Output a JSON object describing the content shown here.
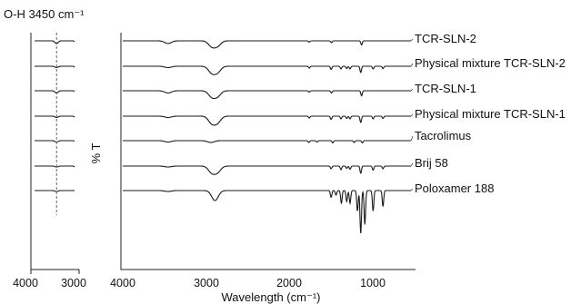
{
  "chart_data": {
    "type": "line",
    "xlabel": "Wavelength (cm⁻¹)",
    "ylabel": "% T",
    "xlim": [
      4000,
      500
    ],
    "xticks": [
      "4000",
      "3000",
      "2000",
      "1000"
    ],
    "inset": {
      "title": "O-H 3450 cm⁻¹",
      "xlim": [
        4000,
        3000
      ],
      "xticks": [
        "4000",
        "3000"
      ],
      "reference_line_x": 3450
    },
    "series": [
      {
        "name": "TCR-SLN-2",
        "dips": [
          [
            3450,
            6
          ],
          [
            2920,
            12
          ],
          [
            2850,
            11
          ],
          [
            1735,
            3
          ],
          [
            1465,
            4
          ],
          [
            1100,
            9
          ]
        ]
      },
      {
        "name": "Physical mixture TCR-SLN-2",
        "dips": [
          [
            3450,
            3
          ],
          [
            2920,
            14
          ],
          [
            2850,
            13
          ],
          [
            1735,
            4
          ],
          [
            1470,
            7
          ],
          [
            1350,
            6
          ],
          [
            1280,
            5
          ],
          [
            1240,
            6
          ],
          [
            1110,
            14
          ],
          [
            960,
            6
          ],
          [
            840,
            5
          ]
        ]
      },
      {
        "name": "TCR-SLN-1",
        "dips": [
          [
            3450,
            5
          ],
          [
            2920,
            13
          ],
          [
            2850,
            12
          ],
          [
            1735,
            3
          ],
          [
            1465,
            5
          ],
          [
            1100,
            11
          ]
        ]
      },
      {
        "name": "Physical mixture TCR-SLN-1",
        "dips": [
          [
            3450,
            3
          ],
          [
            2920,
            15
          ],
          [
            2850,
            14
          ],
          [
            1735,
            4
          ],
          [
            1470,
            7
          ],
          [
            1350,
            6
          ],
          [
            1280,
            5
          ],
          [
            1240,
            6
          ],
          [
            1110,
            14
          ],
          [
            960,
            6
          ],
          [
            840,
            5
          ]
        ]
      },
      {
        "name": "Tacrolimus",
        "dips": [
          [
            3450,
            3
          ],
          [
            2930,
            4
          ],
          [
            1740,
            4
          ],
          [
            1640,
            3
          ],
          [
            1450,
            5
          ],
          [
            1190,
            4
          ],
          [
            1090,
            5
          ]
        ]
      },
      {
        "name": "Brij 58",
        "dips": [
          [
            3450,
            2
          ],
          [
            2920,
            14
          ],
          [
            2850,
            13
          ],
          [
            1470,
            6
          ],
          [
            1350,
            8
          ],
          [
            1280,
            5
          ],
          [
            1240,
            7
          ],
          [
            1110,
            16
          ],
          [
            960,
            9
          ],
          [
            840,
            6
          ]
        ]
      },
      {
        "name": "Poloxamer 188",
        "dips": [
          [
            3450,
            2
          ],
          [
            2880,
            22
          ],
          [
            1470,
            15
          ],
          [
            1410,
            10
          ],
          [
            1345,
            28
          ],
          [
            1280,
            24
          ],
          [
            1240,
            28
          ],
          [
            1150,
            45
          ],
          [
            1110,
            95
          ],
          [
            1060,
            75
          ],
          [
            960,
            45
          ],
          [
            840,
            35
          ]
        ]
      }
    ]
  }
}
